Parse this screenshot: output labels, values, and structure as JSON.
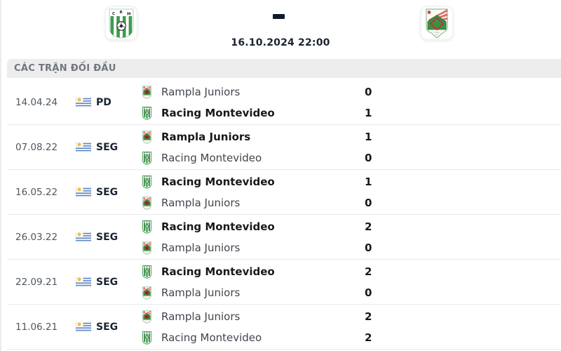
{
  "header": {
    "home_logo": "racing-montevideo-crest",
    "away_logo": "rampla-juniors-crest",
    "separator": "-",
    "datetime": "16.10.2024 22:00"
  },
  "section": {
    "title": "CÁC TRẬN ĐỐI ĐẦU"
  },
  "h2h": {
    "rows": [
      {
        "date": "14.04.24",
        "flag": "uruguay-flag",
        "league": "PD",
        "teams": [
          {
            "name": "Rampla Juniors",
            "logo": "rampla-juniors-logo",
            "score": "0",
            "bold": false
          },
          {
            "name": "Racing Montevideo",
            "logo": "racing-montevideo-logo",
            "score": "1",
            "bold": true
          }
        ]
      },
      {
        "date": "07.08.22",
        "flag": "uruguay-flag",
        "league": "SEG",
        "teams": [
          {
            "name": "Rampla Juniors",
            "logo": "rampla-juniors-logo",
            "score": "1",
            "bold": true
          },
          {
            "name": "Racing Montevideo",
            "logo": "racing-montevideo-logo",
            "score": "0",
            "bold": false
          }
        ]
      },
      {
        "date": "16.05.22",
        "flag": "uruguay-flag",
        "league": "SEG",
        "teams": [
          {
            "name": "Racing Montevideo",
            "logo": "racing-montevideo-logo",
            "score": "1",
            "bold": true
          },
          {
            "name": "Rampla Juniors",
            "logo": "rampla-juniors-logo",
            "score": "0",
            "bold": false
          }
        ]
      },
      {
        "date": "26.03.22",
        "flag": "uruguay-flag",
        "league": "SEG",
        "teams": [
          {
            "name": "Racing Montevideo",
            "logo": "racing-montevideo-logo",
            "score": "2",
            "bold": true
          },
          {
            "name": "Rampla Juniors",
            "logo": "rampla-juniors-logo",
            "score": "0",
            "bold": false
          }
        ]
      },
      {
        "date": "22.09.21",
        "flag": "uruguay-flag",
        "league": "SEG",
        "teams": [
          {
            "name": "Racing Montevideo",
            "logo": "racing-montevideo-logo",
            "score": "2",
            "bold": true
          },
          {
            "name": "Rampla Juniors",
            "logo": "rampla-juniors-logo",
            "score": "0",
            "bold": false
          }
        ]
      },
      {
        "date": "11.06.21",
        "flag": "uruguay-flag",
        "league": "SEG",
        "teams": [
          {
            "name": "Rampla Juniors",
            "logo": "rampla-juniors-logo",
            "score": "2",
            "bold": false
          },
          {
            "name": "Racing Montevideo",
            "logo": "racing-montevideo-logo",
            "score": "2",
            "bold": false
          }
        ]
      }
    ]
  },
  "colors": {
    "navy": "#1b2433",
    "green": "#3d9b4e",
    "section_bar_bg": "#ededed",
    "separator_line": "#e9e9e9",
    "date_gray": "#4e575f",
    "title_gray": "#71767c",
    "flag_blue": "#5b83c4",
    "sun_yellow": "#f2c13e",
    "crest_red": "#c0392b"
  }
}
